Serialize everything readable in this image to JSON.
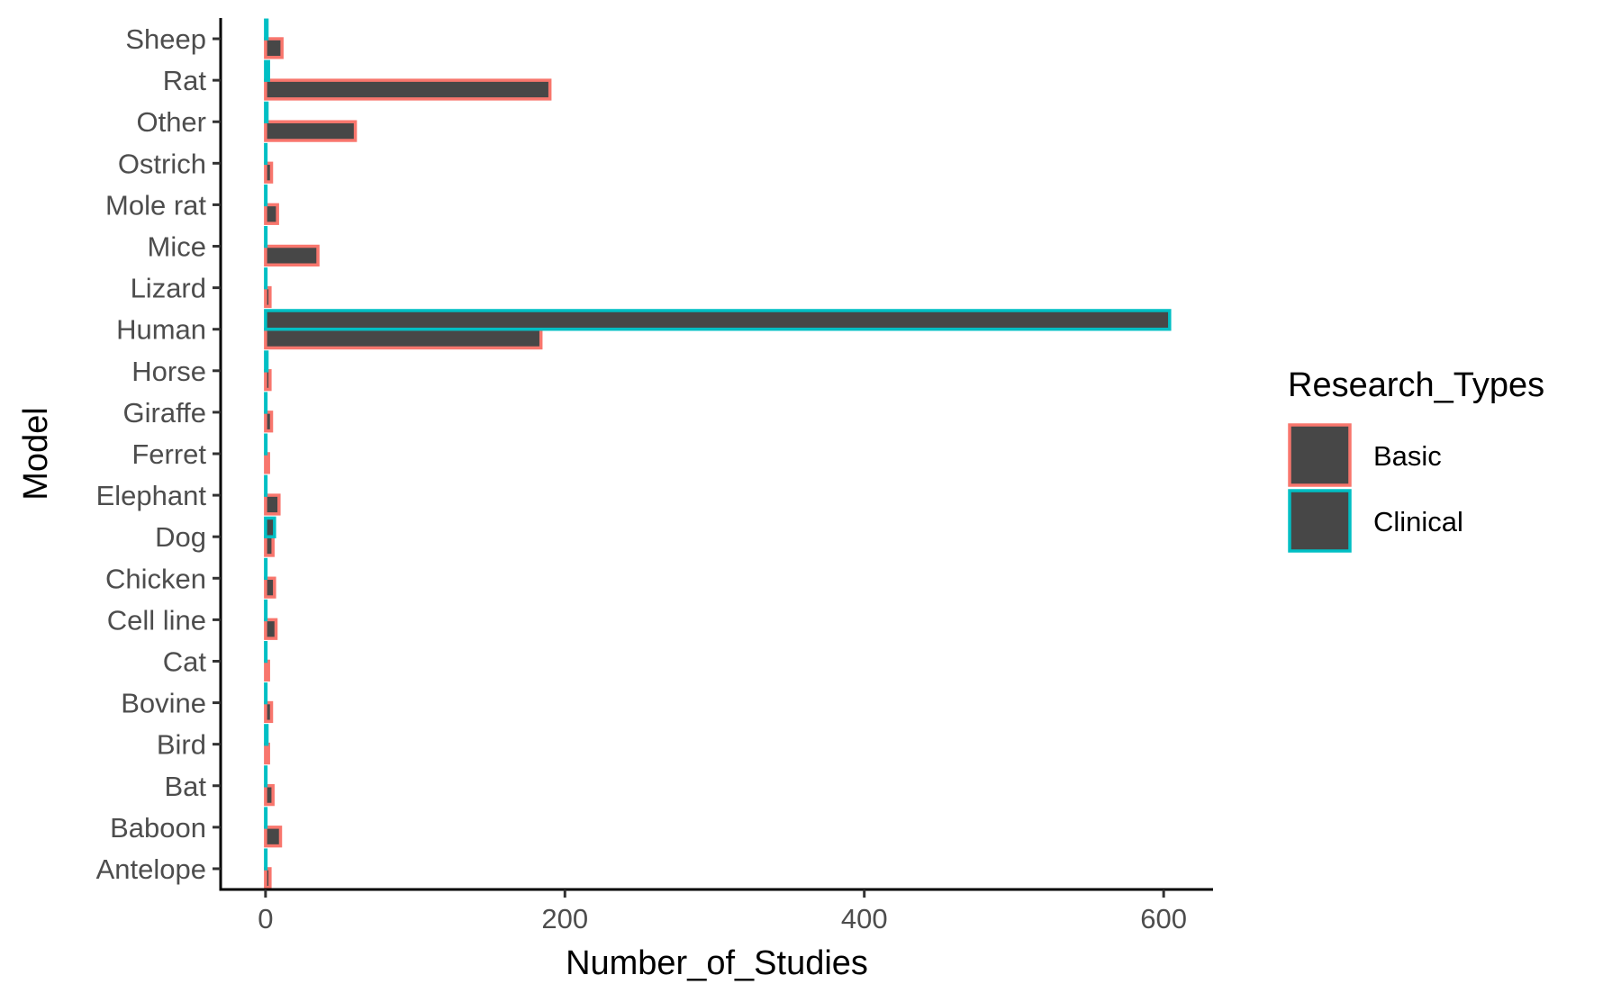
{
  "chart_data": {
    "type": "bar",
    "orientation": "horizontal",
    "position": "dodge",
    "xlabel": "Number_of_Studies",
    "ylabel": "Model",
    "xlim": [
      -30,
      633
    ],
    "xticks": [
      0,
      200,
      400,
      600
    ],
    "categories": [
      "Antelope",
      "Baboon",
      "Bat",
      "Bird",
      "Bovine",
      "Cat",
      "Cell line",
      "Chicken",
      "Dog",
      "Elephant",
      "Ferret",
      "Giraffe",
      "Horse",
      "Human",
      "Lizard",
      "Mice",
      "Mole rat",
      "Ostrich",
      "Other",
      "Rat",
      "Sheep"
    ],
    "series": [
      {
        "name": "Basic",
        "color": "#f8766d",
        "values": [
          3,
          10,
          5,
          2,
          4,
          2,
          7,
          6,
          5,
          9,
          2,
          4,
          3,
          184,
          3,
          35,
          8,
          4,
          60,
          190,
          11
        ]
      },
      {
        "name": "Clinical",
        "color": "#00bfc4",
        "values": [
          0,
          0,
          0,
          1,
          0,
          0,
          0,
          0,
          6,
          0,
          0,
          0,
          1,
          604,
          0,
          0,
          0,
          0,
          1,
          2,
          1
        ]
      }
    ],
    "bar_fill": "#474747",
    "legend": {
      "title": "Research_Types",
      "position": "right"
    },
    "grid": false
  }
}
